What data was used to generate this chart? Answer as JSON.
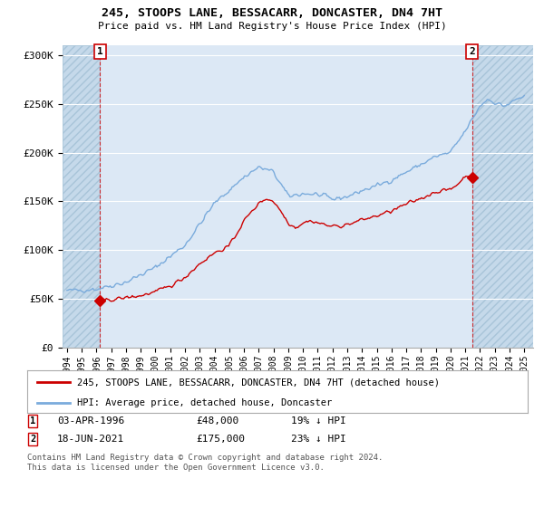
{
  "title": "245, STOOPS LANE, BESSACARR, DONCASTER, DN4 7HT",
  "subtitle": "Price paid vs. HM Land Registry's House Price Index (HPI)",
  "ylabel_ticks": [
    "£0",
    "£50K",
    "£100K",
    "£150K",
    "£200K",
    "£250K",
    "£300K"
  ],
  "ytick_values": [
    0,
    50000,
    100000,
    150000,
    200000,
    250000,
    300000
  ],
  "ylim": [
    0,
    310000
  ],
  "xlim_start": 1993.7,
  "xlim_end": 2025.6,
  "sale1_x": 1996.25,
  "sale1_y": 48000,
  "sale2_x": 2021.46,
  "sale2_y": 175000,
  "line_color_red": "#cc0000",
  "line_color_blue": "#7aabdc",
  "background_color": "#ffffff",
  "plot_bg_color": "#dce8f5",
  "grid_color": "#ffffff",
  "hatch_facecolor": "#c5d9ea",
  "hatch_edgecolor": "#a8c4d8",
  "legend_label_red": "245, STOOPS LANE, BESSACARR, DONCASTER, DN4 7HT (detached house)",
  "legend_label_blue": "HPI: Average price, detached house, Doncaster",
  "footnote": "Contains HM Land Registry data © Crown copyright and database right 2024.\nThis data is licensed under the Open Government Licence v3.0.",
  "xtick_years": [
    1994,
    1995,
    1996,
    1997,
    1998,
    1999,
    2000,
    2001,
    2002,
    2003,
    2004,
    2005,
    2006,
    2007,
    2008,
    2009,
    2010,
    2011,
    2012,
    2013,
    2014,
    2015,
    2016,
    2017,
    2018,
    2019,
    2020,
    2021,
    2022,
    2023,
    2024,
    2025
  ]
}
